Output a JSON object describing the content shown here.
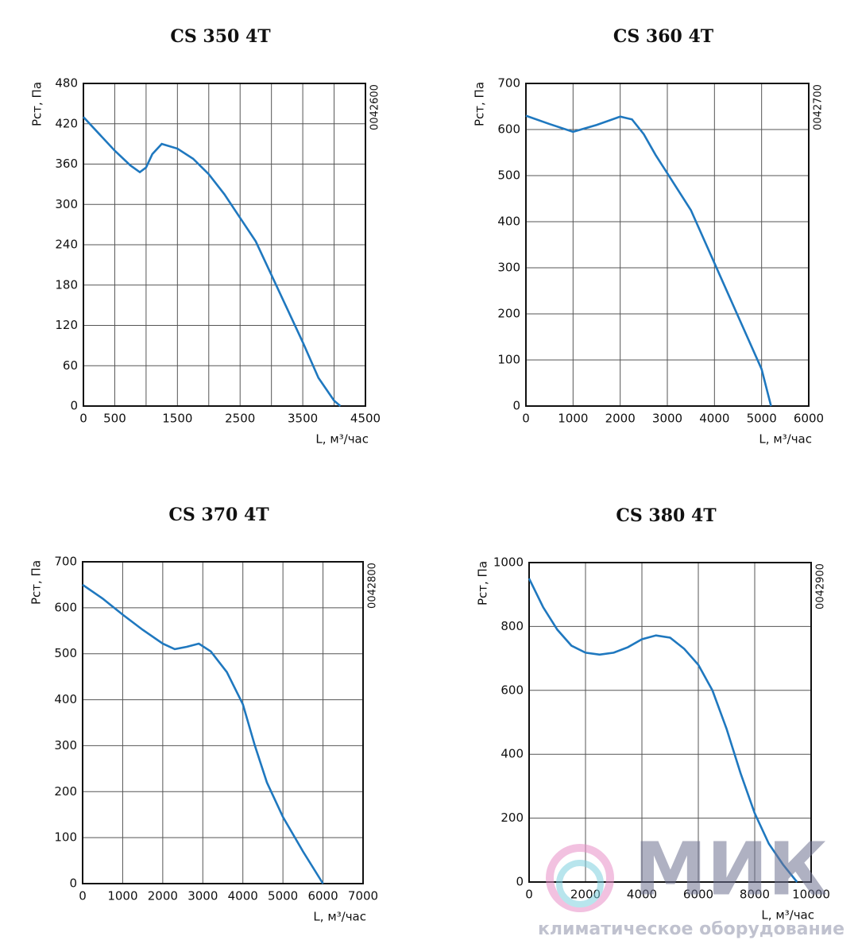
{
  "chart_data": [
    {
      "type": "line",
      "title": "CS 350 4T",
      "y_label": "Pст, Па",
      "x_label": "L, м³/час",
      "code": "0042600",
      "color": "#1f78bf",
      "grid": true,
      "xlim": [
        0,
        4500
      ],
      "ylim": [
        0,
        480
      ],
      "xticks": [
        0,
        500,
        {
          "value": 1000,
          "label": null
        },
        1500,
        {
          "value": 2000,
          "label": null
        },
        2500,
        {
          "value": 3000,
          "label": null
        },
        3500,
        {
          "value": 4000,
          "label": null
        },
        4500
      ],
      "yticks": [
        0,
        60,
        120,
        180,
        240,
        300,
        360,
        420,
        480
      ],
      "x": [
        0,
        250,
        500,
        750,
        900,
        1000,
        1100,
        1250,
        1500,
        1750,
        2000,
        2250,
        2500,
        2750,
        3000,
        3250,
        3500,
        3750,
        4000,
        4100
      ],
      "values": [
        430,
        405,
        380,
        358,
        348,
        355,
        375,
        390,
        383,
        368,
        345,
        315,
        280,
        245,
        195,
        145,
        95,
        42,
        8,
        0
      ]
    },
    {
      "type": "line",
      "title": "CS 360 4T",
      "y_label": "Pст, Па",
      "x_label": "L, м³/час",
      "code": "0042700",
      "color": "#1f78bf",
      "grid": true,
      "xlim": [
        0,
        6000
      ],
      "ylim": [
        0,
        700
      ],
      "xticks": [
        0,
        1000,
        2000,
        3000,
        4000,
        5000,
        6000
      ],
      "yticks": [
        0,
        100,
        200,
        300,
        400,
        500,
        600,
        700
      ],
      "x": [
        0,
        500,
        1000,
        1500,
        2000,
        2250,
        2500,
        2750,
        3000,
        3500,
        4000,
        4500,
        5000,
        5200
      ],
      "values": [
        630,
        612,
        595,
        610,
        628,
        622,
        590,
        545,
        505,
        425,
        310,
        195,
        80,
        0
      ]
    },
    {
      "type": "line",
      "title": "CS 370 4T",
      "y_label": "Pст, Па",
      "x_label": "L, м³/час",
      "code": "0042800",
      "color": "#1f78bf",
      "grid": true,
      "xlim": [
        0,
        7000
      ],
      "ylim": [
        0,
        700
      ],
      "xticks": [
        0,
        1000,
        2000,
        3000,
        4000,
        5000,
        6000,
        7000
      ],
      "yticks": [
        0,
        100,
        200,
        300,
        400,
        500,
        600,
        700
      ],
      "x": [
        0,
        500,
        1000,
        1500,
        2000,
        2300,
        2600,
        2900,
        3200,
        3600,
        4000,
        4300,
        4600,
        5000,
        5500,
        6000
      ],
      "values": [
        650,
        620,
        585,
        552,
        522,
        510,
        515,
        522,
        505,
        460,
        390,
        300,
        220,
        145,
        70,
        0
      ]
    },
    {
      "type": "line",
      "title": "CS 380 4T",
      "y_label": "Pст, Па",
      "x_label": "L, м³/час",
      "code": "0042900",
      "color": "#1f78bf",
      "grid": true,
      "xlim": [
        0,
        10000
      ],
      "ylim": [
        0,
        1000
      ],
      "xticks": [
        0,
        2000,
        4000,
        6000,
        8000,
        10000
      ],
      "yticks": [
        0,
        200,
        400,
        600,
        800,
        1000
      ],
      "x": [
        0,
        500,
        1000,
        1500,
        2000,
        2500,
        3000,
        3500,
        4000,
        4500,
        5000,
        5500,
        6000,
        6500,
        7000,
        7500,
        8000,
        8500,
        9000,
        9500
      ],
      "values": [
        950,
        860,
        790,
        740,
        718,
        712,
        718,
        735,
        760,
        772,
        765,
        730,
        680,
        600,
        480,
        340,
        215,
        120,
        55,
        0
      ]
    }
  ],
  "watermark": {
    "logo": "МИК",
    "tagline": "климатическое оборудование"
  }
}
